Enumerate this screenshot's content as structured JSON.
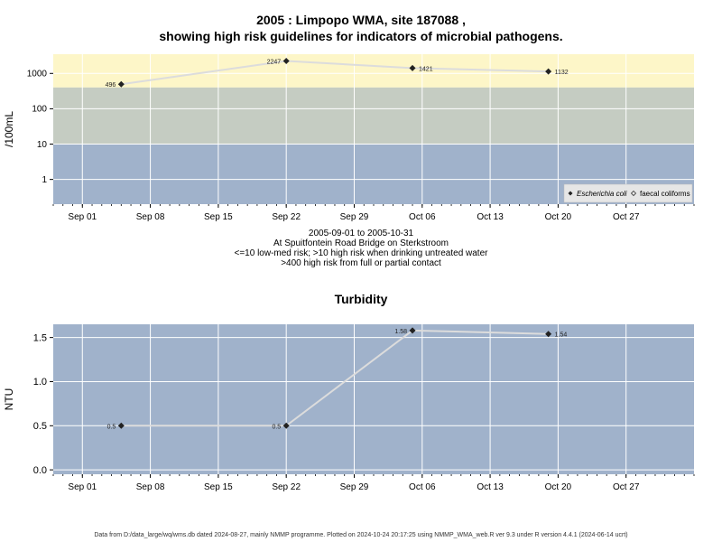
{
  "header": {
    "title_line1": "2005 : Limpopo WMA, site 187088 ,",
    "title_line2": "showing high risk guidelines for indicators of microbial pathogens."
  },
  "caption": {
    "line1": "2005-09-01 to 2005-10-31",
    "line2": "At Spuitfontein Road Bridge on Sterkstroom",
    "line3": "<=10 low-med risk; >10 high risk when drinking untreated water",
    "line4": ">400 high risk from full or partial contact"
  },
  "footer": {
    "text": "Data from D:/data_large/wq/wms.db dated 2024-08-27, mainly NMMP programme. Plotted on 2024-10-24 20:17:25 using NMMP_WMA_web.R ver 9.3 under R version 4.4.1 (2024-06-14 ucrt)"
  },
  "colors": {
    "zone_high": "#fdf6c8",
    "zone_mid": "#c5ccc2",
    "zone_low": "#a0b2cb",
    "turbidity_bg": "#a0b2cb",
    "line": "#dcdcdc",
    "point": "#222222"
  },
  "chart_data": [
    {
      "type": "line",
      "title": "",
      "ylabel": "/100mL",
      "y_scale": "log",
      "ylim": [
        0.2,
        3500
      ],
      "yticks": [
        1,
        10,
        100,
        1000
      ],
      "ytick_labels": [
        "1",
        "10",
        "100",
        "1000"
      ],
      "xlim": [
        "2005-08-29",
        "2005-11-03"
      ],
      "xticks": [
        "2005-09-01",
        "2005-09-08",
        "2005-09-15",
        "2005-09-22",
        "2005-09-29",
        "2005-10-06",
        "2005-10-13",
        "2005-10-20",
        "2005-10-27"
      ],
      "xtick_labels": [
        "Sep 01",
        "Sep 08",
        "Sep 15",
        "Sep 22",
        "Sep 29",
        "Oct 06",
        "Oct 13",
        "Oct 20",
        "Oct 27"
      ],
      "risk_bands": [
        {
          "from": 400,
          "to": 3500,
          "color": "#fdf6c8"
        },
        {
          "from": 10,
          "to": 400,
          "color": "#c5ccc2"
        },
        {
          "from": 0.2,
          "to": 10,
          "color": "#a0b2cb"
        }
      ],
      "legend": [
        "Escherichia coli",
        "faecal coliforms"
      ],
      "legend_position": "bottom-right",
      "series": [
        {
          "name": "Escherichia coli",
          "points": [
            {
              "x": "2005-09-05",
              "y": 496,
              "label": "496"
            },
            {
              "x": "2005-09-22",
              "y": 2247,
              "label": "2247"
            },
            {
              "x": "2005-10-05",
              "y": 1421,
              "label": "1421"
            },
            {
              "x": "2005-10-19",
              "y": 1132,
              "label": "1132"
            }
          ]
        }
      ]
    },
    {
      "type": "line",
      "title": "Turbidity",
      "ylabel": "NTU",
      "ylim": [
        -0.05,
        1.65
      ],
      "yticks": [
        0,
        0.5,
        1,
        1.5
      ],
      "ytick_labels": [
        "0.0",
        "0.5",
        "1.0",
        "1.5"
      ],
      "xlim": [
        "2005-08-29",
        "2005-11-03"
      ],
      "xticks": [
        "2005-09-01",
        "2005-09-08",
        "2005-09-15",
        "2005-09-22",
        "2005-09-29",
        "2005-10-06",
        "2005-10-13",
        "2005-10-20",
        "2005-10-27"
      ],
      "xtick_labels": [
        "Sep 01",
        "Sep 08",
        "Sep 15",
        "Sep 22",
        "Sep 29",
        "Oct 06",
        "Oct 13",
        "Oct 20",
        "Oct 27"
      ],
      "series": [
        {
          "name": "",
          "points": [
            {
              "x": "2005-09-05",
              "y": 0.5,
              "label": "0.5"
            },
            {
              "x": "2005-09-22",
              "y": 0.5,
              "label": "0.5"
            },
            {
              "x": "2005-10-05",
              "y": 1.58,
              "label": "1.58"
            },
            {
              "x": "2005-10-19",
              "y": 1.54,
              "label": "1.54"
            }
          ]
        }
      ]
    }
  ]
}
